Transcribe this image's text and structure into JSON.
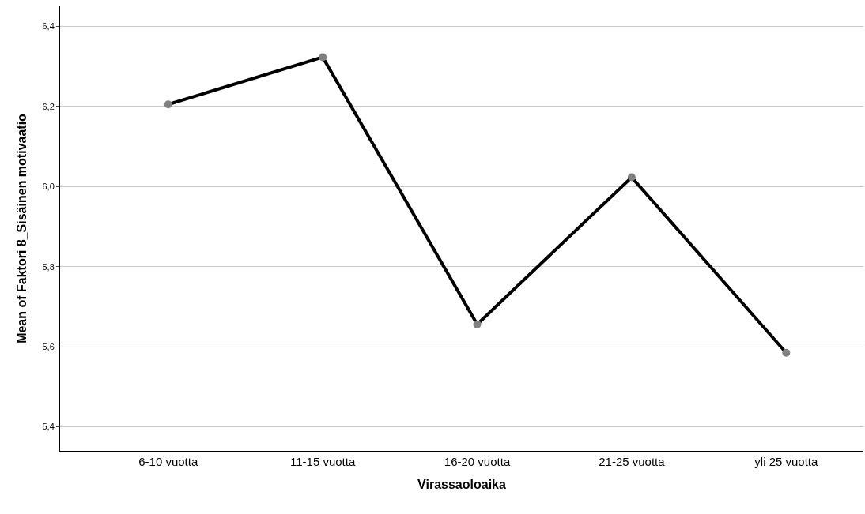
{
  "chart_data": {
    "type": "line",
    "xlabel": "Virassaoloaika",
    "ylabel": "Mean of Faktori 8_Sisäinen motivaatio",
    "categories": [
      "6-10 vuotta",
      "11-15 vuotta",
      "16-20 vuotta",
      "21-25 vuotta",
      "yli 25 vuotta"
    ],
    "series": [
      {
        "color": "#000000",
        "colors": [
          "#808080",
          "#808080",
          "#808080",
          "#808080",
          "#808080"
        ],
        "values": [
          6.205,
          6.323,
          5.656,
          6.023,
          5.585
        ]
      }
    ],
    "ylim": [
      5.34,
      6.45
    ],
    "yticks": [
      {
        "value": 5.4,
        "label": "5,4"
      },
      {
        "value": 5.6,
        "label": "5,6"
      },
      {
        "value": 5.8,
        "label": "5,8"
      },
      {
        "value": 6.0,
        "label": "6,0"
      },
      {
        "value": 6.2,
        "label": "6,2"
      },
      {
        "value": 6.4,
        "label": "6,4"
      }
    ],
    "grid": "y",
    "marker": "circle",
    "line_style": "solid",
    "legend": false
  }
}
